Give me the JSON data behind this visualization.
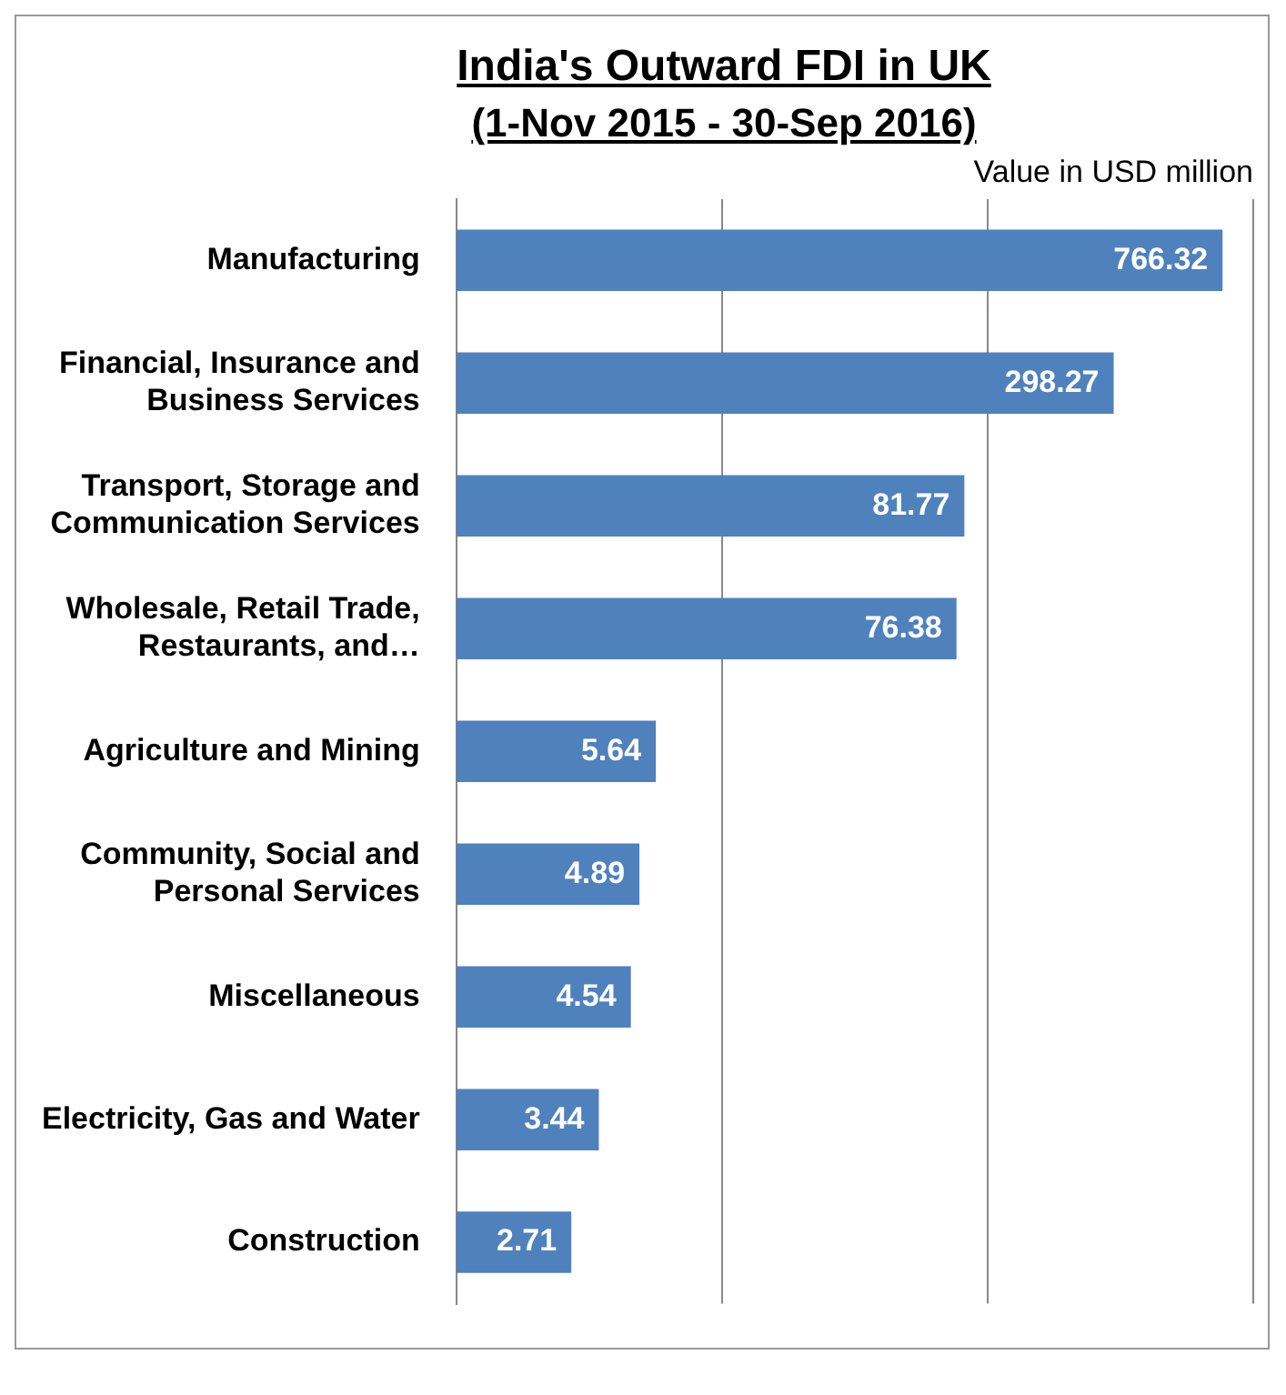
{
  "chart_data": {
    "type": "bar",
    "orientation": "horizontal",
    "title": "India's Outward FDI in UK",
    "subtitle": "(1-Nov 2015 - 30-Sep 2016)",
    "xlabel": "Value in USD million",
    "categories": [
      "Manufacturing",
      "Financial, Insurance and Business Services",
      "Transport, Storage and Communication Services",
      "Wholesale, Retail Trade, Restaurants, and…",
      "Agriculture and Mining",
      "Community, Social and Personal Services",
      "Miscellaneous",
      "Electricity, Gas and Water",
      "Construction"
    ],
    "values": [
      766.32,
      298.27,
      81.77,
      76.38,
      5.64,
      4.89,
      4.54,
      3.44,
      2.71
    ],
    "color": "#4f81bd",
    "log": "x",
    "xlim": [
      1,
      1000
    ],
    "xticks": [
      {
        "value": 1,
        "label": null
      },
      {
        "value": 10,
        "label": null
      },
      {
        "value": 100,
        "label": null
      },
      {
        "value": 1000,
        "label": null
      }
    ],
    "tick_labels": "y",
    "grid": "x",
    "data_labels": true,
    "legend": false
  }
}
